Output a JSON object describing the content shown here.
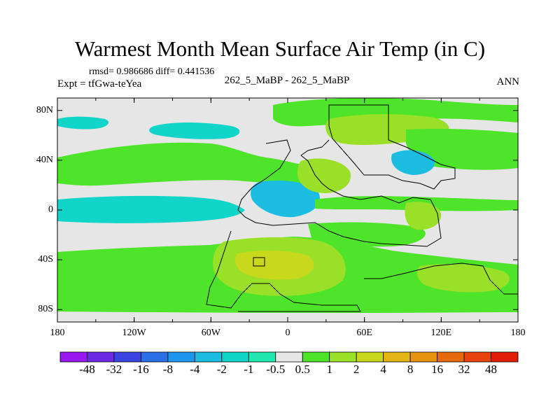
{
  "title": "Warmest Month Mean Surface Air Temp (in C)",
  "stats": "rmsd= 0.986686 diff= 0.441536",
  "experiment": "Expt = tfGwa-teYea",
  "comparison": "262_5_MaBP - 262_5_MaBP",
  "period": "ANN",
  "axes": {
    "x_ticks": [
      "180",
      "120W",
      "60W",
      "0",
      "60E",
      "120E",
      "180"
    ],
    "y_ticks": [
      "80N",
      "40N",
      "0",
      "40S",
      "80S"
    ]
  },
  "colorbar": {
    "labels": [
      "-48",
      "-32",
      "-16",
      "-8",
      "-4",
      "-2",
      "-1",
      "-0.5",
      "0.5",
      "1",
      "2",
      "4",
      "8",
      "16",
      "32",
      "48"
    ],
    "colors": [
      "#9a19f0",
      "#6a2ae6",
      "#3a43e0",
      "#2b6fe6",
      "#1c96ec",
      "#1cbde0",
      "#10d5c8",
      "#20e6b0",
      "#e6e6e6",
      "#4ee42a",
      "#9ae028",
      "#c8d81c",
      "#e2b414",
      "#e69410",
      "#e66a0c",
      "#e6440c",
      "#e01e0a"
    ]
  },
  "field_colors": {
    "background": "#e6e6e6",
    "light_green": "#4ee42a",
    "yellow_green": "#9ae028",
    "olive": "#c8d81c",
    "cyan": "#10d5c8",
    "teal": "#1cbde0"
  }
}
